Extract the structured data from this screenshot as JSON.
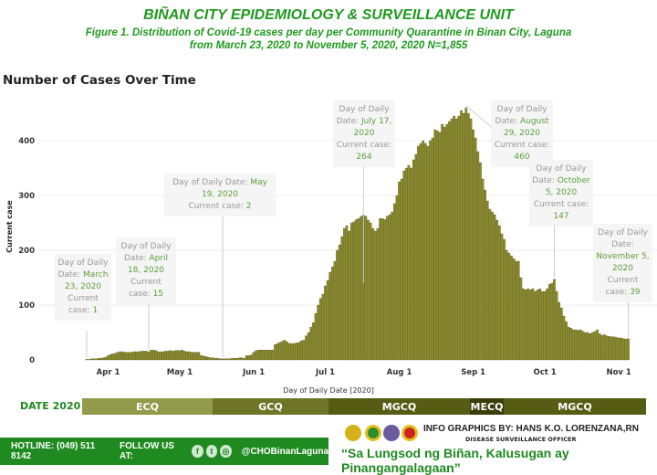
{
  "header": {
    "title": "BIÑAN CITY EPIDEMIOLOGY & SURVEILLANCE UNIT",
    "subtitle1": "Figure 1. Distribution of Covid-19  cases per day per Community Quarantine in Binan City, Laguna",
    "subtitle2": "from March 23, 2020 to November 5, 2020, 2020 N=1,855"
  },
  "chart_data": {
    "type": "bar",
    "title": "Number of Cases Over Time",
    "xlabel": "Day of Daily Date [2020]",
    "ylabel": "Current case",
    "start_date": "2020-03-23",
    "end_date": "2020-11-05",
    "ylim": [
      0,
      470
    ],
    "yticks": [
      0,
      100,
      200,
      300,
      400
    ],
    "xticks": [
      {
        "label": "Apr 1",
        "day": 9
      },
      {
        "label": "May 1",
        "day": 39
      },
      {
        "label": "Jun 1",
        "day": 70
      },
      {
        "label": "Jul 1",
        "day": 100
      },
      {
        "label": "Aug 1",
        "day": 131
      },
      {
        "label": "Sep 1",
        "day": 162
      },
      {
        "label": "Oct 1",
        "day": 192
      },
      {
        "label": "Nov 1",
        "day": 223
      }
    ],
    "bar_color": "#8c8c2c",
    "values": [
      1,
      1,
      2,
      2,
      2,
      3,
      3,
      4,
      5,
      8,
      10,
      11,
      12,
      14,
      15,
      15,
      14,
      14,
      14,
      14,
      15,
      15,
      15,
      16,
      16,
      16,
      15,
      18,
      18,
      17,
      15,
      15,
      15,
      16,
      16,
      17,
      16,
      17,
      17,
      17,
      18,
      16,
      15,
      15,
      14,
      14,
      14,
      14,
      8,
      7,
      6,
      5,
      4,
      4,
      3,
      3,
      2,
      2,
      2,
      2,
      2,
      3,
      3,
      3,
      4,
      4,
      3,
      8,
      8,
      9,
      14,
      17,
      18,
      18,
      18,
      18,
      18,
      18,
      18,
      28,
      30,
      32,
      34,
      36,
      33,
      30,
      30,
      30,
      31,
      32,
      35,
      36,
      44,
      50,
      60,
      68,
      85,
      100,
      112,
      120,
      135,
      145,
      160,
      170,
      180,
      200,
      210,
      225,
      240,
      245,
      235,
      250,
      252,
      256,
      258,
      262,
      264,
      262,
      255,
      250,
      240,
      235,
      240,
      258,
      258,
      256,
      262,
      265,
      270,
      285,
      300,
      325,
      330,
      345,
      350,
      355,
      350,
      365,
      375,
      390,
      395,
      400,
      395,
      390,
      400,
      405,
      420,
      418,
      415,
      430,
      425,
      430,
      435,
      440,
      445,
      440,
      445,
      455,
      450,
      460,
      450,
      440,
      420,
      405,
      380,
      360,
      330,
      310,
      290,
      275,
      270,
      265,
      255,
      245,
      230,
      220,
      200,
      195,
      190,
      185,
      180,
      180,
      150,
      130,
      128,
      130,
      128,
      130,
      125,
      128,
      130,
      125,
      125,
      130,
      138,
      140,
      147,
      125,
      105,
      95,
      80,
      70,
      60,
      58,
      55,
      55,
      54,
      55,
      52,
      50,
      50,
      48,
      50,
      52,
      55,
      48,
      45,
      46,
      44,
      43,
      42,
      42,
      41,
      40,
      40,
      39,
      38,
      39
    ],
    "annotations": [
      {
        "prefix": "Day of Daily Date:",
        "date": "March 23, 2020",
        "case_label": "Current case:",
        "value": "1",
        "day": 0
      },
      {
        "prefix": "Day of Daily Date:",
        "date": "April 18, 2020",
        "case_label": "Current case:",
        "value": "15",
        "day": 26
      },
      {
        "prefix": "Day of Daily Date:",
        "date": "May 19, 2020",
        "case_label": "Current case:",
        "value": "2",
        "day": 57
      },
      {
        "prefix": "Day of Daily Date:",
        "date": "July 17, 2020",
        "case_label": "Current case:",
        "value": "264",
        "day": 116
      },
      {
        "prefix": "Day of Daily Date:",
        "date": "August 29, 2020",
        "case_label": "Current case:",
        "value": "460",
        "day": 159
      },
      {
        "prefix": "Day of Daily Date:",
        "date": "October 5, 2020",
        "case_label": "Current case:",
        "value": "147",
        "day": 196
      },
      {
        "prefix": "Day of Daily Date:",
        "date": "November 5, 2020",
        "case_label": "Current case:",
        "value": "39",
        "day": 227
      }
    ]
  },
  "quarantine": {
    "label": "DATE 2020",
    "segments": [
      {
        "name": "ECQ",
        "color": "#929a4c"
      },
      {
        "name": "GCQ",
        "color": "#6f7527"
      },
      {
        "name": "MGCQ",
        "color": "#575c15"
      },
      {
        "name": "MECQ",
        "color": "#3b3e0b"
      },
      {
        "name": "MGCQ",
        "color": "#575c15"
      }
    ]
  },
  "footer": {
    "hotline": "HOTLINE: (049) 511 8142",
    "follow": "FOLLOW US AT:",
    "handle": "@CHOBinanLaguna",
    "credit": "INFO GRAPHICS BY: HANS K.O. LORENZANA,RN",
    "role": "DISEASE SURVEILLANCE OFFICER",
    "slogan": "“Sa Lungsod ng Biñan, Kalusugan ay Pinangangalagaan”"
  }
}
